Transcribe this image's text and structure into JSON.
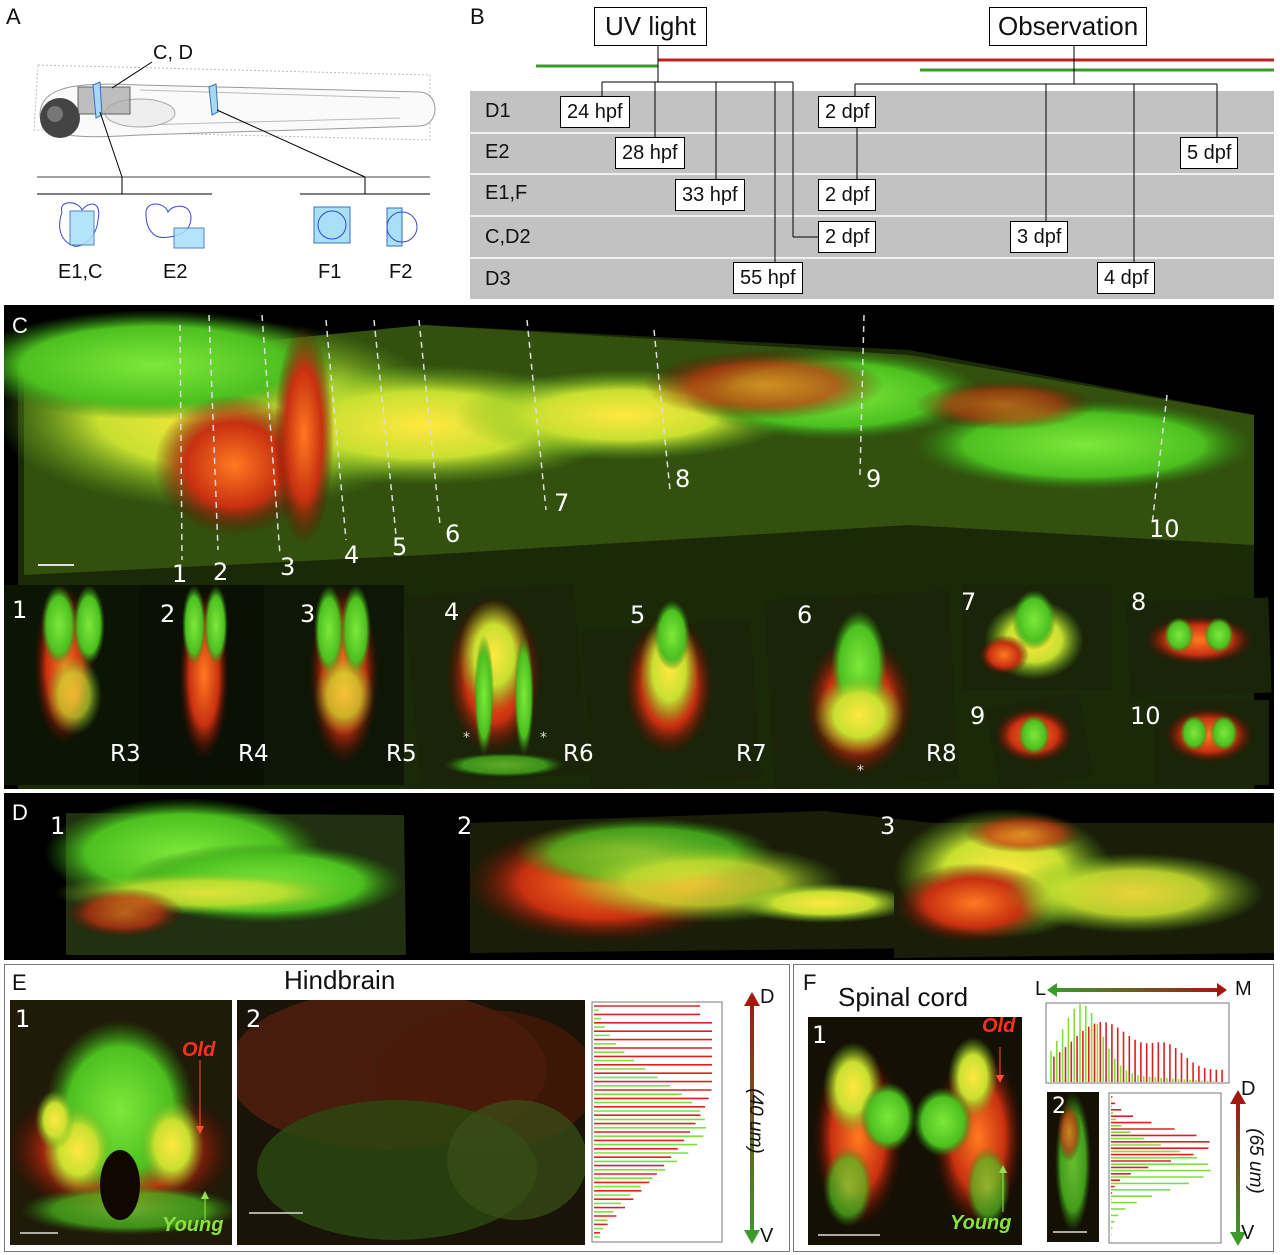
{
  "panelA": {
    "label": "A",
    "callout": "C, D",
    "sections": [
      "E1,C",
      "E2",
      "F1",
      "F2"
    ]
  },
  "panelB": {
    "label": "B",
    "uv": "UV light",
    "obs": "Observation",
    "rows": [
      "D1",
      "E2",
      "E1,F",
      "C,D2",
      "D3"
    ],
    "times": {
      "t24": "24 hpf",
      "t28": "28 hpf",
      "t33": "33 hpf",
      "t55": "55 hpf",
      "d2a": "2 dpf",
      "d2b": "2 dpf",
      "d2c": "2 dpf",
      "d3": "3 dpf",
      "d4": "4 dpf",
      "d5": "5 dpf"
    }
  },
  "panelC": {
    "label": "C",
    "sections": [
      "1",
      "2",
      "3",
      "4",
      "5",
      "6",
      "7",
      "8",
      "9",
      "10"
    ],
    "crossLabels": [
      "1",
      "2",
      "3",
      "4",
      "5",
      "6",
      "7",
      "8",
      "9",
      "10"
    ],
    "rhombomeres": [
      "R3",
      "R4",
      "R5",
      "R6",
      "R7",
      "R8"
    ]
  },
  "panelD": {
    "label": "D",
    "subs": [
      "1",
      "2",
      "3"
    ]
  },
  "panelE": {
    "label": "E",
    "title": "Hindbrain",
    "sub1": "1",
    "sub2": "2",
    "old": "Old",
    "young": "Young",
    "axisD": "D",
    "axisV": "V",
    "axisDepth": "(40 um)"
  },
  "panelF": {
    "label": "F",
    "title": "Spinal cord",
    "sub1": "1",
    "sub2": "2",
    "old": "Old",
    "young": "Young",
    "axisL": "L",
    "axisM": "M",
    "axisD": "D",
    "axisV": "V",
    "axisDepth": "(65 um)"
  },
  "colors": {
    "old": "#e02020",
    "young": "#7ee03a",
    "bg": "#000000"
  }
}
